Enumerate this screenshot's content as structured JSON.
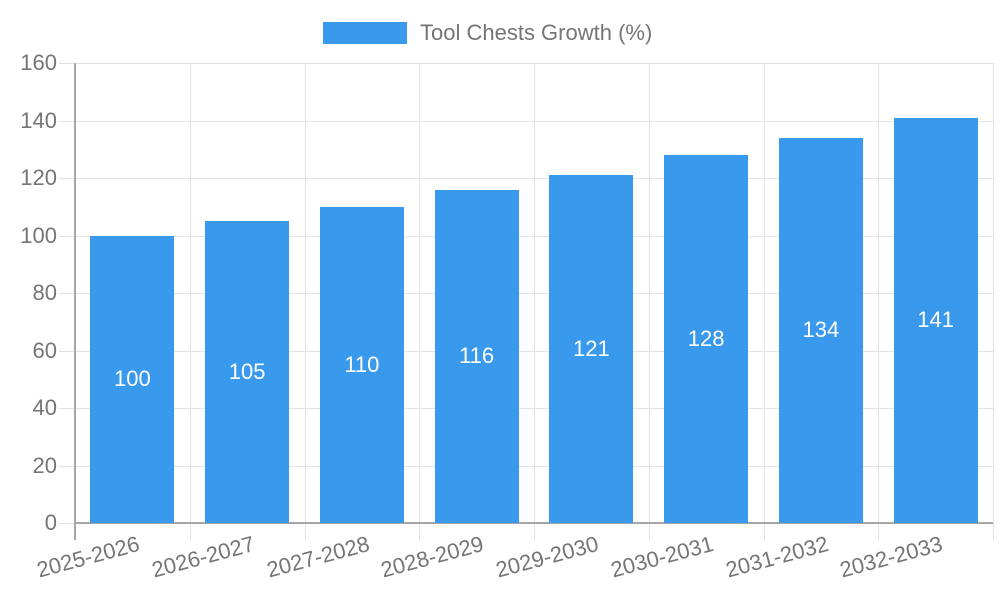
{
  "chart_data": {
    "type": "bar",
    "title": "",
    "legend_label": "Tool Chests Growth (%)",
    "legend_position": "top",
    "categories": [
      "2025-2026",
      "2026-2027",
      "2027-2028",
      "2028-2029",
      "2029-2030",
      "2030-2031",
      "2031-2032",
      "2032-2033"
    ],
    "values": [
      100,
      105,
      110,
      116,
      121,
      128,
      134,
      141
    ],
    "xlabel": "",
    "ylabel": "",
    "ylim": [
      0,
      160
    ],
    "yticks": [
      0,
      20,
      40,
      60,
      80,
      100,
      120,
      140,
      160
    ],
    "grid": true,
    "value_labels": "inside-center",
    "x_label_rotation_deg": -15,
    "colors": {
      "bar": "#3999EC",
      "bar_label": "#ffffff",
      "axis_text": "#757575",
      "gridline": "#e3e3e3",
      "axis_line": "#a6a6a6",
      "background": "#ffffff"
    }
  }
}
